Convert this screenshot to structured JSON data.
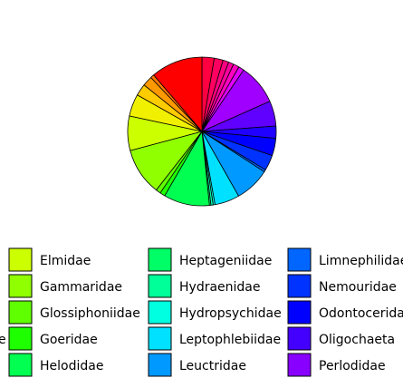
{
  "chart_data": {
    "type": "pie",
    "title": "",
    "start_angle_deg": 90,
    "direction": "clockwise",
    "border_color": "#000000",
    "slices": [
      {
        "label": "",
        "value": 3.3,
        "color": "#FF0040"
      },
      {
        "label": "",
        "value": 2.4,
        "color": "#FF0060"
      },
      {
        "label": "",
        "value": 1.6,
        "color": "#FF0080"
      },
      {
        "label": "",
        "value": 1.4,
        "color": "#FF00A0"
      },
      {
        "label": "",
        "value": 1.6,
        "color": "#FF00C0"
      },
      {
        "label": "",
        "value": 1.5,
        "color": "#E000FF"
      },
      {
        "label": "",
        "value": 11.0,
        "color": "#A000FF"
      },
      {
        "label": "",
        "value": 6.8,
        "color": "#6000FF"
      },
      {
        "label": "",
        "value": 3.3,
        "color": "#2000FF"
      },
      {
        "label": "",
        "value": 4.7,
        "color": "#0000FF"
      },
      {
        "label": "",
        "value": 4.2,
        "color": "#0033FF"
      },
      {
        "label": "",
        "value": 0.6,
        "color": "#0066FF"
      },
      {
        "label": "",
        "value": 9.5,
        "color": "#0099FF"
      },
      {
        "label": "",
        "value": 6.7,
        "color": "#00E1FF"
      },
      {
        "label": "",
        "value": 0.5,
        "color": "#00FFE0"
      },
      {
        "label": "",
        "value": 0.6,
        "color": "#00FFB0"
      },
      {
        "label": "",
        "value": 0.4,
        "color": "#00FF80"
      },
      {
        "label": "",
        "value": 12.4,
        "color": "#00FF50"
      },
      {
        "label": "",
        "value": 1.4,
        "color": "#1EFF00"
      },
      {
        "label": "",
        "value": 1.3,
        "color": "#60FF00"
      },
      {
        "label": "",
        "value": 12.8,
        "color": "#90FF00"
      },
      {
        "label": "",
        "value": 9.3,
        "color": "#CCFF00"
      },
      {
        "label": "",
        "value": 6.0,
        "color": "#F0F000"
      },
      {
        "label": "",
        "value": 3.2,
        "color": "#FFCC00"
      },
      {
        "label": "",
        "value": 2.7,
        "color": "#FF9900"
      },
      {
        "label": "",
        "value": 1.0,
        "color": "#FF7700"
      },
      {
        "label": "",
        "value": 14.0,
        "color": "#FF0000"
      }
    ],
    "legend": {
      "placement": "bottom",
      "items": [
        {
          "label": "Elmidae",
          "color": "#CCFF00"
        },
        {
          "label": "Gammaridae",
          "color": "#90FF00"
        },
        {
          "label": "Glossiphoniidae",
          "color": "#60FF00"
        },
        {
          "label": "Goeridae",
          "color": "#1EFF00"
        },
        {
          "label": "Helodidae",
          "color": "#00FF50"
        },
        {
          "label": "Heptageniidae",
          "color": "#00FF66"
        },
        {
          "label": "Hydraenidae",
          "color": "#00FF99"
        },
        {
          "label": "Hydropsychidae",
          "color": "#00FFE0"
        },
        {
          "label": "Leptophlebiidae",
          "color": "#00E1FF"
        },
        {
          "label": "Leuctridae",
          "color": "#0099FF"
        },
        {
          "label": "Limnephilidae",
          "color": "#0066FF"
        },
        {
          "label": "Nemouridae",
          "color": "#0033FF"
        },
        {
          "label": "Odontoceridae",
          "color": "#0000FF"
        },
        {
          "label": "Oligochaeta",
          "color": "#4400FF"
        },
        {
          "label": "Perlodidae",
          "color": "#8800FF"
        }
      ],
      "cut_off_fragment": "e"
    }
  }
}
